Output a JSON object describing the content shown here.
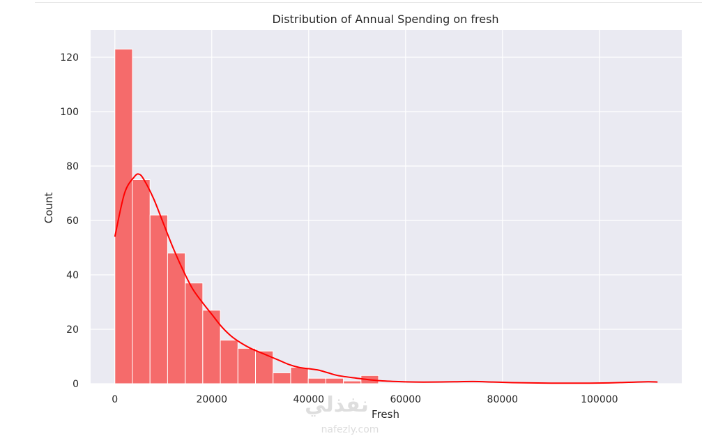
{
  "chart_data": {
    "type": "bar",
    "title": "Distribution of Annual Spending on fresh",
    "xlabel": "Fresh",
    "ylabel": "Count",
    "xlim": [
      -5000,
      117000
    ],
    "ylim": [
      0,
      130
    ],
    "x_ticks": [
      0,
      20000,
      40000,
      60000,
      80000,
      100000
    ],
    "y_ticks": [
      0,
      20,
      40,
      60,
      80,
      100,
      120
    ],
    "grid": true,
    "bar_color": "#f56b6b",
    "bar_edge_color": "#ffffff",
    "bin_edges": [
      3,
      3631,
      7259,
      10887,
      14515,
      18143,
      21771,
      25399,
      29027,
      32655,
      36283,
      39911,
      43539,
      47167,
      50795,
      54423,
      58051,
      61679,
      65307,
      68935,
      72563,
      76191,
      79819,
      83447,
      87075,
      90703,
      94331,
      97959,
      101587,
      105215,
      108843,
      112471
    ],
    "counts": [
      123,
      75,
      62,
      48,
      37,
      27,
      16,
      13,
      12,
      4,
      6,
      2,
      2,
      1,
      3,
      0,
      0,
      0,
      0,
      0,
      0,
      0,
      0,
      0,
      0,
      0,
      0,
      0,
      0,
      0,
      0
    ],
    "kde": {
      "color": "#ff0000",
      "x": [
        0,
        2000,
        4000,
        5000,
        6000,
        8000,
        10000,
        12000,
        14000,
        16000,
        18000,
        20000,
        22000,
        24000,
        26000,
        28000,
        30000,
        32000,
        34000,
        36000,
        38000,
        40000,
        42000,
        44000,
        46000,
        50000,
        54000,
        58000,
        62000,
        66000,
        70000,
        74000,
        78000,
        82000,
        86000,
        90000,
        94000,
        98000,
        102000,
        106000,
        110000,
        112000
      ],
      "y": [
        54,
        70,
        76,
        77,
        75,
        68,
        59,
        50,
        42,
        35,
        30,
        25.5,
        21,
        17.5,
        15,
        13,
        11.5,
        10,
        8.5,
        7,
        6,
        5.5,
        5,
        4,
        3,
        2,
        1.2,
        0.8,
        0.6,
        0.6,
        0.7,
        0.8,
        0.6,
        0.4,
        0.3,
        0.2,
        0.2,
        0.2,
        0.3,
        0.5,
        0.7,
        0.6
      ]
    }
  },
  "watermark": {
    "arabic": "نفذلي",
    "latin": "nafezly.com"
  }
}
